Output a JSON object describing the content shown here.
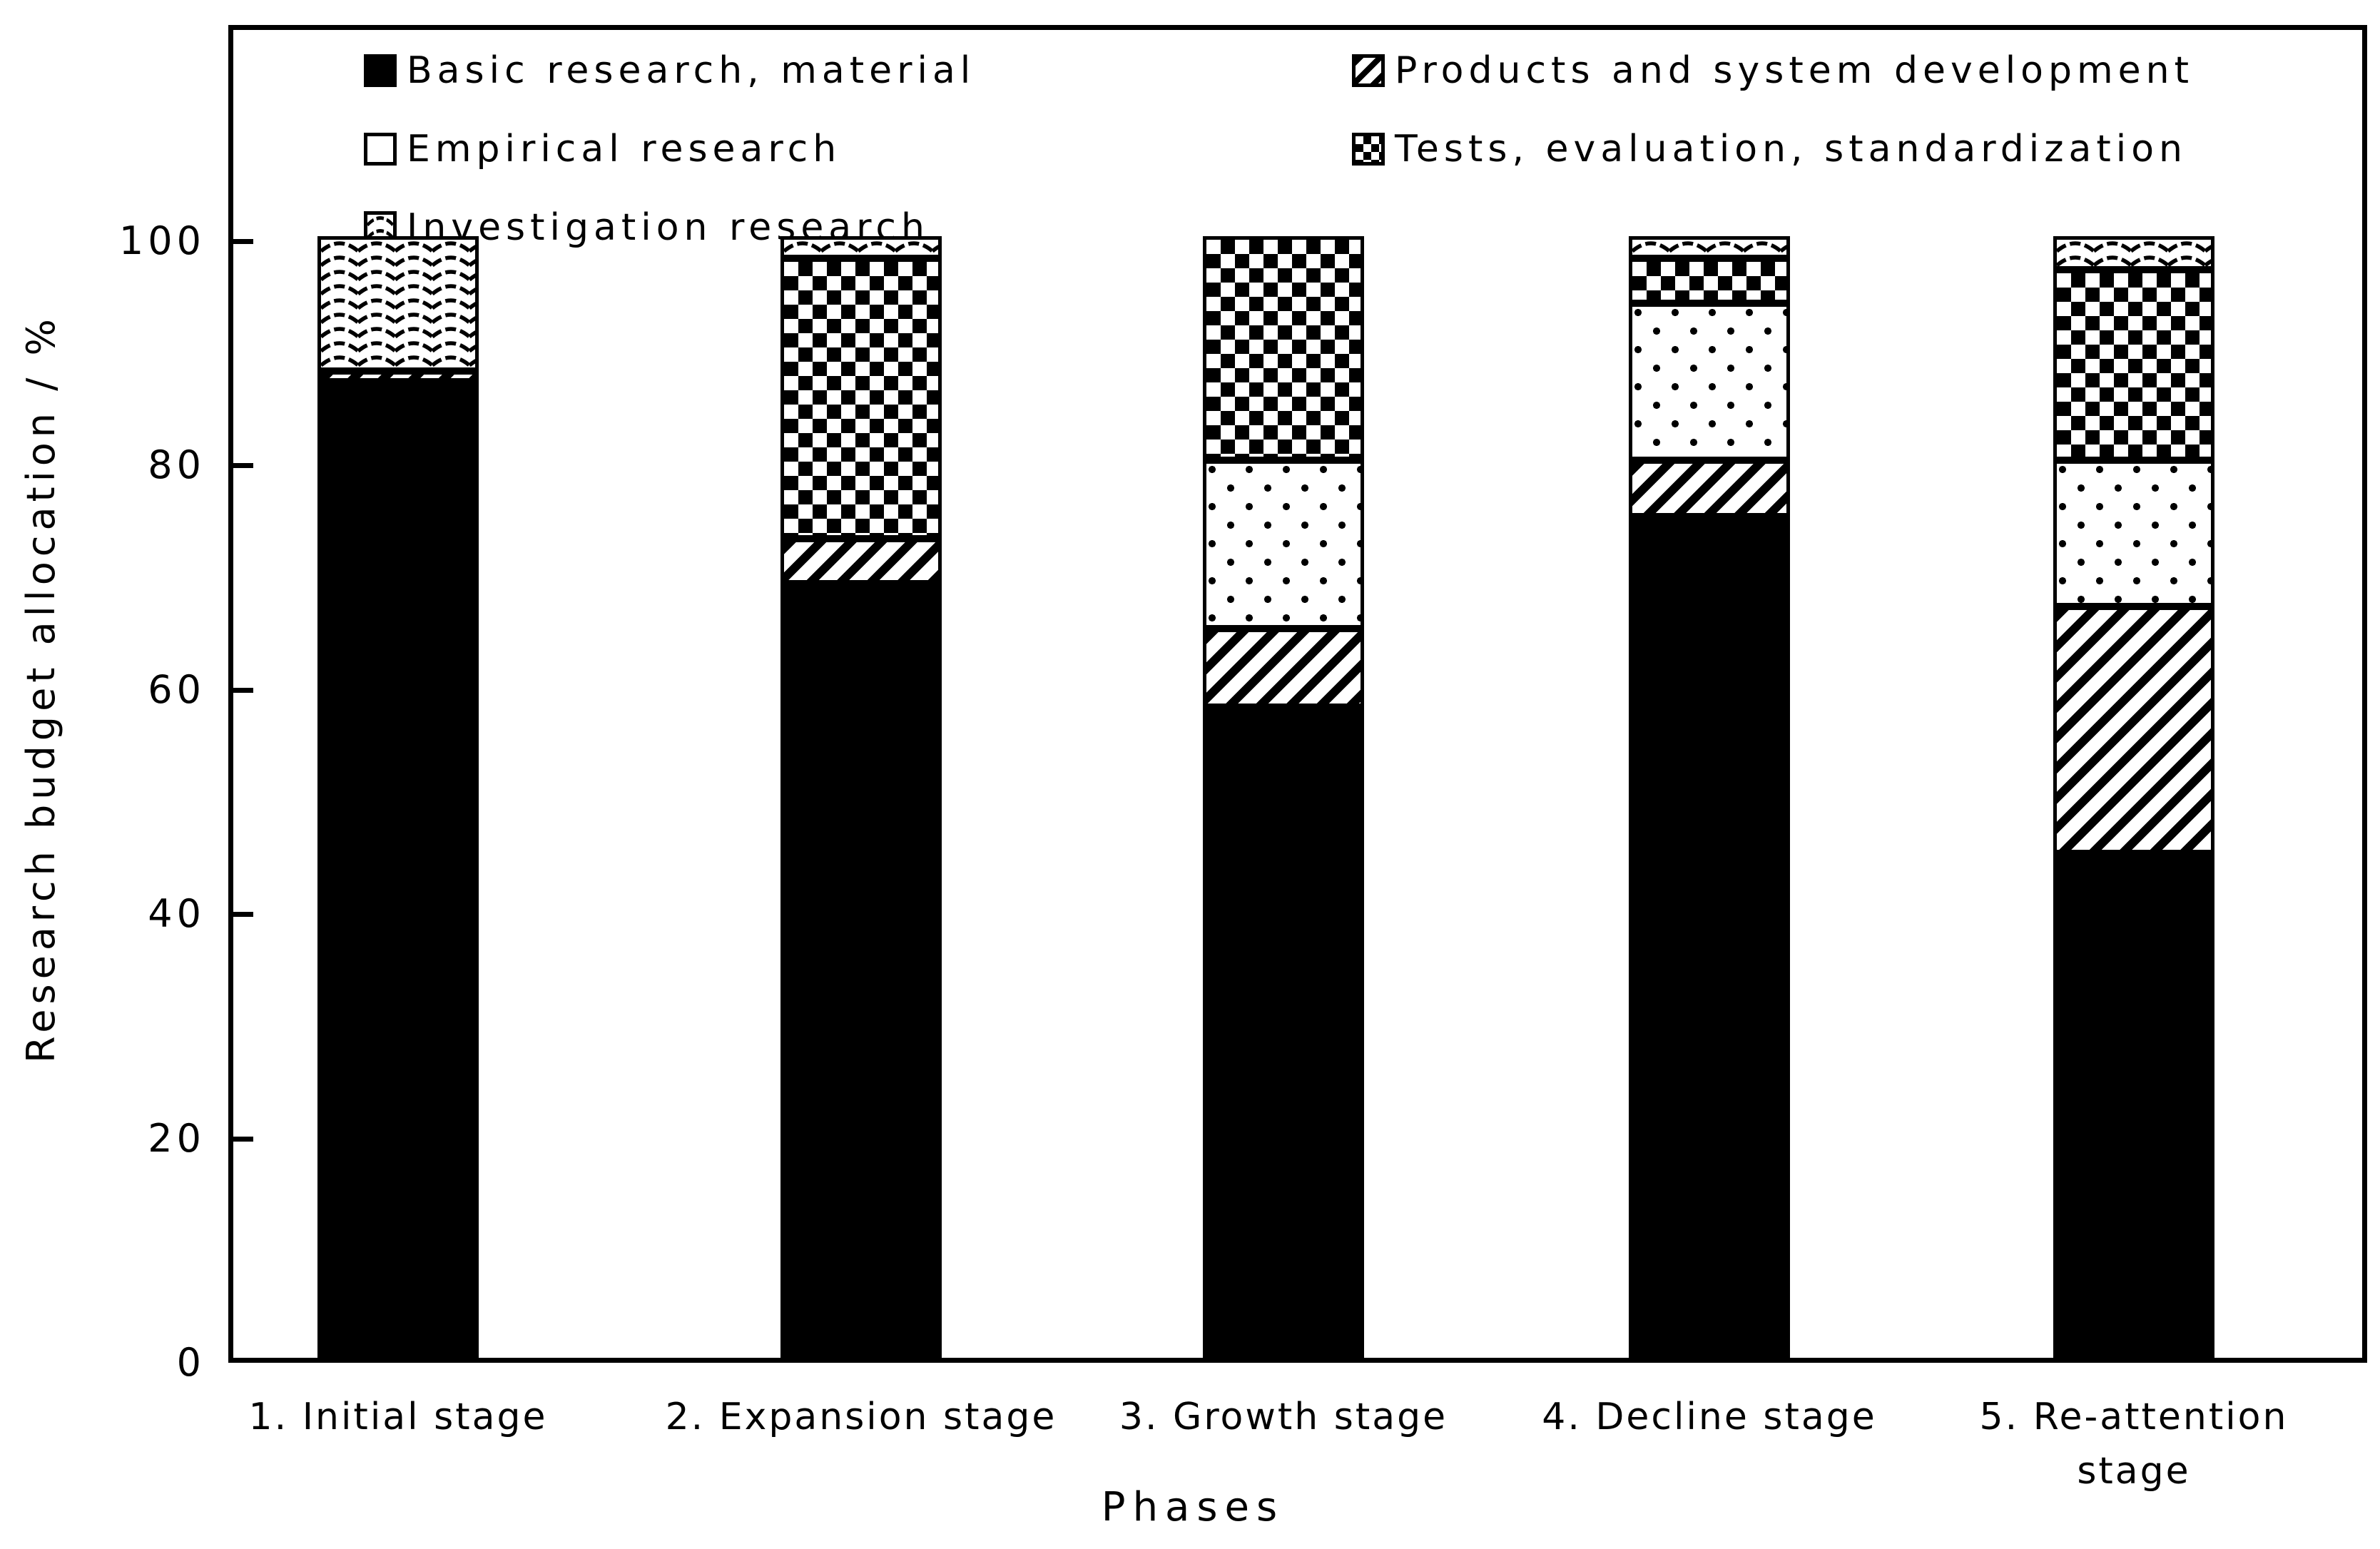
{
  "chart_data": {
    "type": "bar",
    "stacked": true,
    "title": "",
    "xlabel": "Phases",
    "ylabel": "Research budget allocation / %",
    "ylim": [
      0,
      100
    ],
    "yticks": [
      0,
      20,
      40,
      60,
      80,
      100
    ],
    "grid": false,
    "legend_position": "top-inside-two-columns",
    "categories": [
      "1. Initial stage",
      "2. Expansion stage",
      "3. Growth stage",
      "4. Decline stage",
      "5. Re-attention stage"
    ],
    "series": [
      {
        "name": "Basic research, material",
        "pattern": "solid",
        "values": [
          87,
          69,
          58,
          75,
          45
        ]
      },
      {
        "name": "Products and system development",
        "pattern": "diagonal",
        "values": [
          1,
          4,
          7,
          5,
          22
        ]
      },
      {
        "name": "Empirical research",
        "pattern": "dots",
        "values": [
          0,
          0,
          15,
          14,
          13
        ]
      },
      {
        "name": "Tests, evaluation, standardization",
        "pattern": "checker",
        "values": [
          0,
          25,
          20,
          4,
          17
        ]
      },
      {
        "name": "Investigation research",
        "pattern": "wavy",
        "values": [
          12,
          2,
          0,
          2,
          3
        ]
      }
    ],
    "colors": {
      "foreground": "#000000",
      "background": "#ffffff"
    }
  }
}
